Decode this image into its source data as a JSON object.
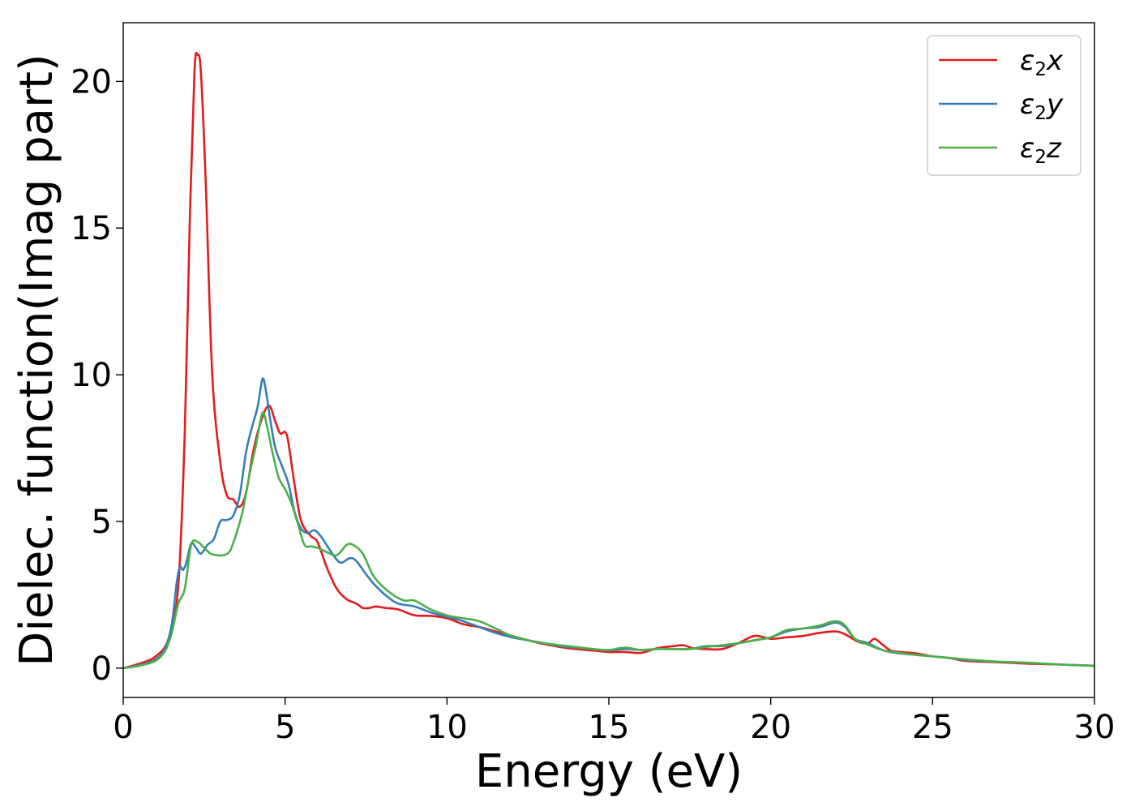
{
  "chart_data": {
    "type": "line",
    "title": "",
    "xlabel": "Energy (eV)",
    "ylabel": "Dielec. function(Imag part)",
    "xlim": [
      0,
      30
    ],
    "ylim": [
      -1,
      22
    ],
    "xticks": [
      0,
      5,
      10,
      15,
      20,
      25,
      30
    ],
    "yticks": [
      0,
      5,
      10,
      15,
      20
    ],
    "grid": false,
    "legend_position": "top-right",
    "series": [
      {
        "name": "ε₂x",
        "legend_base": "ε",
        "legend_sub": "2",
        "legend_suffix": "x",
        "color": "#e41a1c",
        "points": [
          [
            0,
            0
          ],
          [
            0.5,
            0.15
          ],
          [
            1.0,
            0.4
          ],
          [
            1.4,
            1.0
          ],
          [
            1.7,
            2.8
          ],
          [
            1.9,
            8.0
          ],
          [
            2.05,
            15.0
          ],
          [
            2.2,
            20.3
          ],
          [
            2.3,
            20.9
          ],
          [
            2.4,
            20.3
          ],
          [
            2.55,
            16.5
          ],
          [
            2.75,
            10.0
          ],
          [
            3.0,
            7.0
          ],
          [
            3.2,
            5.9
          ],
          [
            3.4,
            5.75
          ],
          [
            3.6,
            5.5
          ],
          [
            3.8,
            6.0
          ],
          [
            4.0,
            7.3
          ],
          [
            4.25,
            8.4
          ],
          [
            4.5,
            8.95
          ],
          [
            4.7,
            8.4
          ],
          [
            4.85,
            8.0
          ],
          [
            5.0,
            8.05
          ],
          [
            5.1,
            7.7
          ],
          [
            5.3,
            6.2
          ],
          [
            5.5,
            5.0
          ],
          [
            5.8,
            4.5
          ],
          [
            6.0,
            4.3
          ],
          [
            6.3,
            3.4
          ],
          [
            6.6,
            2.7
          ],
          [
            6.9,
            2.35
          ],
          [
            7.2,
            2.2
          ],
          [
            7.4,
            2.05
          ],
          [
            7.6,
            2.05
          ],
          [
            7.8,
            2.1
          ],
          [
            8.1,
            2.05
          ],
          [
            8.5,
            2.0
          ],
          [
            9.0,
            1.8
          ],
          [
            9.5,
            1.78
          ],
          [
            10.0,
            1.7
          ],
          [
            10.5,
            1.5
          ],
          [
            11.0,
            1.4
          ],
          [
            11.5,
            1.25
          ],
          [
            12.0,
            1.1
          ],
          [
            12.5,
            0.95
          ],
          [
            13.0,
            0.82
          ],
          [
            13.5,
            0.72
          ],
          [
            14.0,
            0.65
          ],
          [
            14.5,
            0.6
          ],
          [
            15.0,
            0.55
          ],
          [
            15.5,
            0.55
          ],
          [
            16.0,
            0.52
          ],
          [
            16.5,
            0.68
          ],
          [
            17.0,
            0.75
          ],
          [
            17.3,
            0.78
          ],
          [
            17.6,
            0.68
          ],
          [
            18.0,
            0.65
          ],
          [
            18.5,
            0.65
          ],
          [
            19.0,
            0.85
          ],
          [
            19.5,
            1.1
          ],
          [
            20.0,
            1.0
          ],
          [
            20.5,
            1.05
          ],
          [
            21.0,
            1.1
          ],
          [
            21.5,
            1.2
          ],
          [
            22.0,
            1.25
          ],
          [
            22.3,
            1.15
          ],
          [
            22.7,
            0.9
          ],
          [
            23.0,
            0.85
          ],
          [
            23.2,
            1.0
          ],
          [
            23.4,
            0.85
          ],
          [
            23.7,
            0.6
          ],
          [
            24.0,
            0.55
          ],
          [
            24.5,
            0.5
          ],
          [
            25.0,
            0.4
          ],
          [
            25.5,
            0.35
          ],
          [
            26.0,
            0.25
          ],
          [
            27.0,
            0.2
          ],
          [
            28.0,
            0.15
          ],
          [
            29.0,
            0.12
          ],
          [
            30.0,
            0.08
          ]
        ]
      },
      {
        "name": "ε₂y",
        "legend_base": "ε",
        "legend_sub": "2",
        "legend_suffix": "y",
        "color": "#377eb8",
        "points": [
          [
            0,
            0
          ],
          [
            0.5,
            0.1
          ],
          [
            1.0,
            0.3
          ],
          [
            1.3,
            0.7
          ],
          [
            1.5,
            1.5
          ],
          [
            1.65,
            2.9
          ],
          [
            1.75,
            3.45
          ],
          [
            1.85,
            3.35
          ],
          [
            1.95,
            3.6
          ],
          [
            2.1,
            4.25
          ],
          [
            2.25,
            4.1
          ],
          [
            2.4,
            3.9
          ],
          [
            2.6,
            4.2
          ],
          [
            2.8,
            4.4
          ],
          [
            3.0,
            5.0
          ],
          [
            3.2,
            5.05
          ],
          [
            3.4,
            5.2
          ],
          [
            3.6,
            5.9
          ],
          [
            3.8,
            7.4
          ],
          [
            4.0,
            8.3
          ],
          [
            4.15,
            8.9
          ],
          [
            4.3,
            9.85
          ],
          [
            4.4,
            9.5
          ],
          [
            4.55,
            8.4
          ],
          [
            4.7,
            7.5
          ],
          [
            4.9,
            6.9
          ],
          [
            5.1,
            6.3
          ],
          [
            5.3,
            5.3
          ],
          [
            5.5,
            4.75
          ],
          [
            5.7,
            4.6
          ],
          [
            5.9,
            4.7
          ],
          [
            6.1,
            4.5
          ],
          [
            6.4,
            4.0
          ],
          [
            6.7,
            3.6
          ],
          [
            7.0,
            3.75
          ],
          [
            7.2,
            3.65
          ],
          [
            7.5,
            3.2
          ],
          [
            7.8,
            2.8
          ],
          [
            8.2,
            2.4
          ],
          [
            8.5,
            2.2
          ],
          [
            9.0,
            2.1
          ],
          [
            9.5,
            1.9
          ],
          [
            10.0,
            1.75
          ],
          [
            10.5,
            1.6
          ],
          [
            11.0,
            1.4
          ],
          [
            11.5,
            1.2
          ],
          [
            12.0,
            1.05
          ],
          [
            12.5,
            0.95
          ],
          [
            13.0,
            0.85
          ],
          [
            13.5,
            0.75
          ],
          [
            14.0,
            0.7
          ],
          [
            14.5,
            0.65
          ],
          [
            15.0,
            0.6
          ],
          [
            15.5,
            0.65
          ],
          [
            16.0,
            0.62
          ],
          [
            16.5,
            0.65
          ],
          [
            17.0,
            0.65
          ],
          [
            17.5,
            0.65
          ],
          [
            18.0,
            0.75
          ],
          [
            18.5,
            0.75
          ],
          [
            19.0,
            0.85
          ],
          [
            19.5,
            0.95
          ],
          [
            20.0,
            1.05
          ],
          [
            20.5,
            1.25
          ],
          [
            21.0,
            1.35
          ],
          [
            21.5,
            1.4
          ],
          [
            22.0,
            1.55
          ],
          [
            22.3,
            1.4
          ],
          [
            22.6,
            1.0
          ],
          [
            23.0,
            0.85
          ],
          [
            23.5,
            0.6
          ],
          [
            24.0,
            0.5
          ],
          [
            24.5,
            0.45
          ],
          [
            25.0,
            0.4
          ],
          [
            25.5,
            0.35
          ],
          [
            26.0,
            0.28
          ],
          [
            27.0,
            0.22
          ],
          [
            28.0,
            0.18
          ],
          [
            29.0,
            0.12
          ],
          [
            30.0,
            0.08
          ]
        ]
      },
      {
        "name": "ε₂z",
        "legend_base": "ε",
        "legend_sub": "2",
        "legend_suffix": "z",
        "color": "#4daf4a",
        "points": [
          [
            0,
            0
          ],
          [
            0.5,
            0.08
          ],
          [
            1.0,
            0.25
          ],
          [
            1.3,
            0.6
          ],
          [
            1.5,
            1.2
          ],
          [
            1.7,
            2.2
          ],
          [
            1.9,
            2.7
          ],
          [
            2.1,
            4.2
          ],
          [
            2.3,
            4.3
          ],
          [
            2.5,
            4.1
          ],
          [
            2.7,
            3.9
          ],
          [
            2.9,
            3.85
          ],
          [
            3.1,
            3.85
          ],
          [
            3.3,
            4.0
          ],
          [
            3.5,
            4.6
          ],
          [
            3.7,
            5.4
          ],
          [
            3.9,
            6.6
          ],
          [
            4.1,
            7.6
          ],
          [
            4.3,
            8.7
          ],
          [
            4.45,
            8.2
          ],
          [
            4.6,
            7.4
          ],
          [
            4.8,
            6.5
          ],
          [
            5.0,
            6.1
          ],
          [
            5.2,
            5.6
          ],
          [
            5.4,
            4.9
          ],
          [
            5.6,
            4.2
          ],
          [
            5.8,
            4.15
          ],
          [
            6.0,
            4.1
          ],
          [
            6.3,
            3.95
          ],
          [
            6.6,
            3.85
          ],
          [
            6.9,
            4.2
          ],
          [
            7.1,
            4.2
          ],
          [
            7.4,
            3.9
          ],
          [
            7.7,
            3.2
          ],
          [
            8.0,
            2.8
          ],
          [
            8.4,
            2.45
          ],
          [
            8.7,
            2.3
          ],
          [
            9.0,
            2.3
          ],
          [
            9.5,
            2.0
          ],
          [
            10.0,
            1.8
          ],
          [
            10.5,
            1.7
          ],
          [
            11.0,
            1.6
          ],
          [
            11.5,
            1.35
          ],
          [
            12.0,
            1.1
          ],
          [
            12.5,
            0.95
          ],
          [
            13.0,
            0.85
          ],
          [
            13.5,
            0.78
          ],
          [
            14.0,
            0.72
          ],
          [
            14.5,
            0.65
          ],
          [
            15.0,
            0.62
          ],
          [
            15.5,
            0.7
          ],
          [
            16.0,
            0.62
          ],
          [
            16.5,
            0.65
          ],
          [
            17.0,
            0.65
          ],
          [
            17.5,
            0.65
          ],
          [
            18.0,
            0.72
          ],
          [
            18.5,
            0.78
          ],
          [
            19.0,
            0.85
          ],
          [
            19.5,
            0.95
          ],
          [
            20.0,
            1.05
          ],
          [
            20.5,
            1.3
          ],
          [
            21.0,
            1.35
          ],
          [
            21.5,
            1.45
          ],
          [
            22.0,
            1.6
          ],
          [
            22.3,
            1.45
          ],
          [
            22.6,
            1.0
          ],
          [
            23.0,
            0.8
          ],
          [
            23.5,
            0.6
          ],
          [
            24.0,
            0.52
          ],
          [
            24.5,
            0.45
          ],
          [
            25.0,
            0.4
          ],
          [
            25.5,
            0.35
          ],
          [
            26.0,
            0.3
          ],
          [
            27.0,
            0.22
          ],
          [
            28.0,
            0.18
          ],
          [
            29.0,
            0.12
          ],
          [
            30.0,
            0.08
          ]
        ]
      }
    ]
  }
}
